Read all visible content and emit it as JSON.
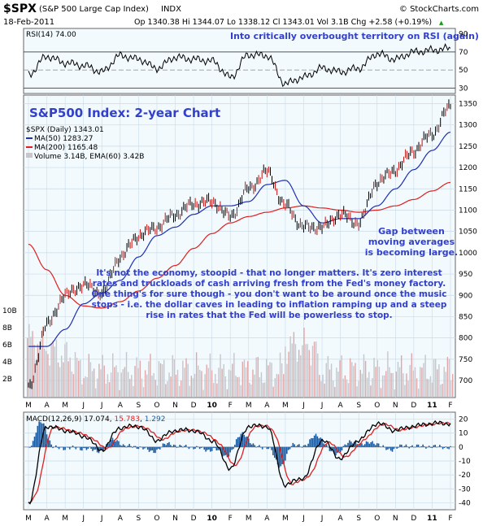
{
  "header": {
    "symbol": "$SPX",
    "name": "(S&P 500 Large Cap Index)",
    "exchange": "INDX",
    "source": "© StockCharts.com",
    "date": "18-Feb-2011",
    "quote": "Op 1340.38   Hi 1344.07   Lo 1338.12   Cl 1343.01   Vol 3.1B   Chg +2.58 (+0.19%)",
    "chg_arrow": "▲"
  },
  "rsi_panel": {
    "label": "RSI(14) 74.00",
    "annotation": "Into critically overbought territory on RSI (again)",
    "ticks": [
      90,
      70,
      50,
      30
    ]
  },
  "price_panel": {
    "title": "S&P500 Index: 2-year Chart",
    "legend": [
      {
        "text": "$SPX (Daily) 1343.01",
        "color": "#000000"
      },
      {
        "text": "MA(50) 1283.27",
        "color": "#1f2fb4"
      },
      {
        "text": "MA(200) 1165.48",
        "color": "#e02020"
      },
      {
        "text": "Volume 3.14B, EMA(60) 3.42B",
        "color": "#000000"
      }
    ],
    "ticks": [
      1350,
      1300,
      1250,
      1200,
      1150,
      1100,
      1050,
      1000,
      950,
      900,
      850,
      800,
      750,
      700
    ],
    "volume_ticks": [
      "10B",
      "8B",
      "6B",
      "4B",
      "2B"
    ],
    "gap_note": [
      "Gap between",
      "moving averages",
      "is becoming large."
    ],
    "comment": [
      "It's not the economy, stoopid - that no longer matters. It's zero interest",
      "rates and truckloads of cash arriving fresh from the Fed's money factory.",
      "One thing's for sure though - you don't want to be around once the music",
      "stops - i.e. the dollar caves in leading to inflation ramping up and a steep",
      "rise in rates that the Fed will be powerless to stop."
    ]
  },
  "macd_panel": {
    "label_prefix": "MACD(12,26,9)",
    "macd_value": "17.074",
    "signal_value": "15.783",
    "hist_value": "1.292",
    "ticks": [
      20,
      10,
      0,
      -10,
      -20,
      -30,
      -40
    ]
  },
  "x_axis": {
    "labels": [
      "M",
      "A",
      "M",
      "J",
      "J",
      "A",
      "S",
      "O",
      "N",
      "D",
      "10",
      "F",
      "M",
      "A",
      "M",
      "J",
      "J",
      "A",
      "S",
      "O",
      "N",
      "D",
      "11",
      "F"
    ],
    "bold": [
      "10",
      "11"
    ]
  },
  "colors": {
    "panel_bg": "#f2fafd",
    "grid": "#c9dbe8",
    "ma50": "#1f2fb4",
    "ma200": "#e02020",
    "macd_signal": "#e02020",
    "hist": "#1c5aa0",
    "annotation": "#3340c8",
    "volume_up": "#c6c6cc",
    "volume_down": "#e3a6a6"
  },
  "chart_data": {
    "type": "line",
    "title": "S&P500 Index: 2-year Chart",
    "x": [
      "2009-03",
      "2009-04",
      "2009-05",
      "2009-06",
      "2009-07",
      "2009-08",
      "2009-09",
      "2009-10",
      "2009-11",
      "2009-12",
      "2010-01",
      "2010-02",
      "2010-03",
      "2010-04",
      "2010-05",
      "2010-06",
      "2010-07",
      "2010-08",
      "2010-09",
      "2010-10",
      "2010-11",
      "2010-12",
      "2011-01",
      "2011-02"
    ],
    "ylim_price": [
      660,
      1370
    ],
    "ylim_rsi": [
      30,
      90
    ],
    "ylim_macd": [
      -45,
      25
    ],
    "series": [
      {
        "name": "$SPX (Daily)",
        "values": [
          680,
          830,
          900,
          925,
          905,
          990,
          1040,
          1060,
          1090,
          1115,
          1120,
          1085,
          1150,
          1190,
          1110,
          1060,
          1060,
          1090,
          1070,
          1165,
          1195,
          1240,
          1280,
          1343
        ]
      },
      {
        "name": "MA(50)",
        "values": [
          780,
          780,
          820,
          880,
          905,
          935,
          990,
          1040,
          1060,
          1090,
          1110,
          1110,
          1120,
          1160,
          1170,
          1110,
          1070,
          1080,
          1080,
          1110,
          1150,
          1195,
          1240,
          1283
        ]
      },
      {
        "name": "MA(200)",
        "values": [
          1020,
          960,
          900,
          875,
          870,
          885,
          910,
          940,
          970,
          1010,
          1045,
          1070,
          1085,
          1095,
          1105,
          1110,
          1105,
          1100,
          1095,
          1100,
          1110,
          1125,
          1145,
          1165
        ]
      },
      {
        "name": "RSI(14)",
        "values": [
          45,
          65,
          58,
          55,
          48,
          66,
          62,
          52,
          64,
          62,
          60,
          42,
          67,
          66,
          35,
          42,
          52,
          48,
          52,
          68,
          62,
          70,
          72,
          74
        ]
      },
      {
        "name": "MACD(12,26,9)",
        "values": [
          -40,
          15,
          12,
          8,
          -2,
          14,
          15,
          5,
          12,
          12,
          5,
          -15,
          15,
          15,
          -27,
          -22,
          5,
          -8,
          5,
          17,
          12,
          15,
          17,
          17
        ]
      }
    ]
  }
}
